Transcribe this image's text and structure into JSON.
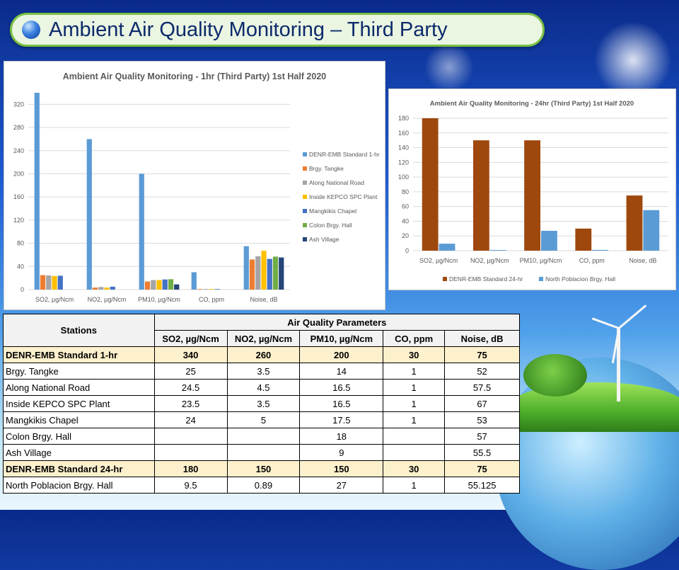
{
  "slide": {
    "title": "Ambient Air Quality Monitoring – Third Party"
  },
  "chart_data": [
    {
      "type": "bar",
      "title": "Ambient Air Quality Monitoring - 1hr (Third Party) 1st Half 2020",
      "categories": [
        "SO2, µg/Ncm",
        "NO2, µg/Ncm",
        "PM10, µg/Ncm",
        "CO, ppm",
        "Noise, dB"
      ],
      "yticks": [
        0,
        40,
        80,
        120,
        160,
        200,
        240,
        280,
        320
      ],
      "ylim": [
        0,
        340
      ],
      "grid": true,
      "legend_position": "right",
      "series": [
        {
          "name": "DENR-EMB Standard 1-hr",
          "color": "#5b9bd5",
          "values": [
            340,
            260,
            200,
            30,
            75
          ]
        },
        {
          "name": "Brgy. Tangke",
          "color": "#ed7d31",
          "values": [
            25,
            3.5,
            14,
            1,
            52
          ]
        },
        {
          "name": "Along National Road",
          "color": "#a5a5a5",
          "values": [
            24.5,
            4.5,
            16.5,
            1,
            57.5
          ]
        },
        {
          "name": "Inside KEPCO SPC Plant",
          "color": "#ffc000",
          "values": [
            23.5,
            3.5,
            16.5,
            1,
            67
          ]
        },
        {
          "name": "Mangkikis Chapel",
          "color": "#4472c4",
          "values": [
            24,
            5,
            17.5,
            1,
            53
          ]
        },
        {
          "name": "Colon Brgy. Hall",
          "color": "#70ad47",
          "values": [
            null,
            null,
            18,
            null,
            57
          ]
        },
        {
          "name": "Ash Village",
          "color": "#264478",
          "values": [
            null,
            null,
            9,
            null,
            55.5
          ]
        }
      ]
    },
    {
      "type": "bar",
      "title": "Ambient Air Quality Monitoring - 24hr (Third Party) 1st Half 2020",
      "categories": [
        "SO2, µg/Ncm",
        "NO2, µg/Ncm",
        "PM10, µg/Ncm",
        "CO, ppm",
        "Noise, dB"
      ],
      "yticks": [
        0,
        20,
        40,
        60,
        80,
        100,
        120,
        140,
        160,
        180
      ],
      "ylim": [
        0,
        180
      ],
      "grid": true,
      "legend_position": "bottom",
      "series": [
        {
          "name": "DENR-EMB Standard 24-hr",
          "color": "#9e480e",
          "values": [
            180,
            150,
            150,
            30,
            75
          ]
        },
        {
          "name": "North Poblacion Brgy. Hall",
          "color": "#5b9bd5",
          "values": [
            9.5,
            0.89,
            27,
            1,
            55.125
          ]
        }
      ]
    }
  ],
  "table": {
    "stations_header": "Stations",
    "group_header": "Air Quality Parameters",
    "columns": [
      "SO2, µg/Ncm",
      "NO2, µg/Ncm",
      "PM10, µg/Ncm",
      "CO, ppm",
      "Noise, dB"
    ],
    "rows": [
      {
        "station": "DENR-EMB Standard 1-hr",
        "standard": true,
        "values": [
          "340",
          "260",
          "200",
          "30",
          "75"
        ]
      },
      {
        "station": "Brgy. Tangke",
        "standard": false,
        "values": [
          "25",
          "3.5",
          "14",
          "1",
          "52"
        ]
      },
      {
        "station": "Along National Road",
        "standard": false,
        "values": [
          "24.5",
          "4.5",
          "16.5",
          "1",
          "57.5"
        ]
      },
      {
        "station": "Inside KEPCO SPC Plant",
        "standard": false,
        "values": [
          "23.5",
          "3.5",
          "16.5",
          "1",
          "67"
        ]
      },
      {
        "station": "Mangkikis Chapel",
        "standard": false,
        "values": [
          "24",
          "5",
          "17.5",
          "1",
          "53"
        ]
      },
      {
        "station": "Colon Brgy. Hall",
        "standard": false,
        "values": [
          "",
          "",
          "18",
          "",
          "57"
        ]
      },
      {
        "station": "Ash Village",
        "standard": false,
        "values": [
          "",
          "",
          "9",
          "",
          "55.5"
        ]
      },
      {
        "station": "DENR-EMB Standard 24-hr",
        "standard": true,
        "values": [
          "180",
          "150",
          "150",
          "30",
          "75"
        ]
      },
      {
        "station": "North Poblacion Brgy. Hall",
        "standard": false,
        "values": [
          "9.5",
          "0.89",
          "27",
          "1",
          "55.125"
        ]
      }
    ]
  }
}
